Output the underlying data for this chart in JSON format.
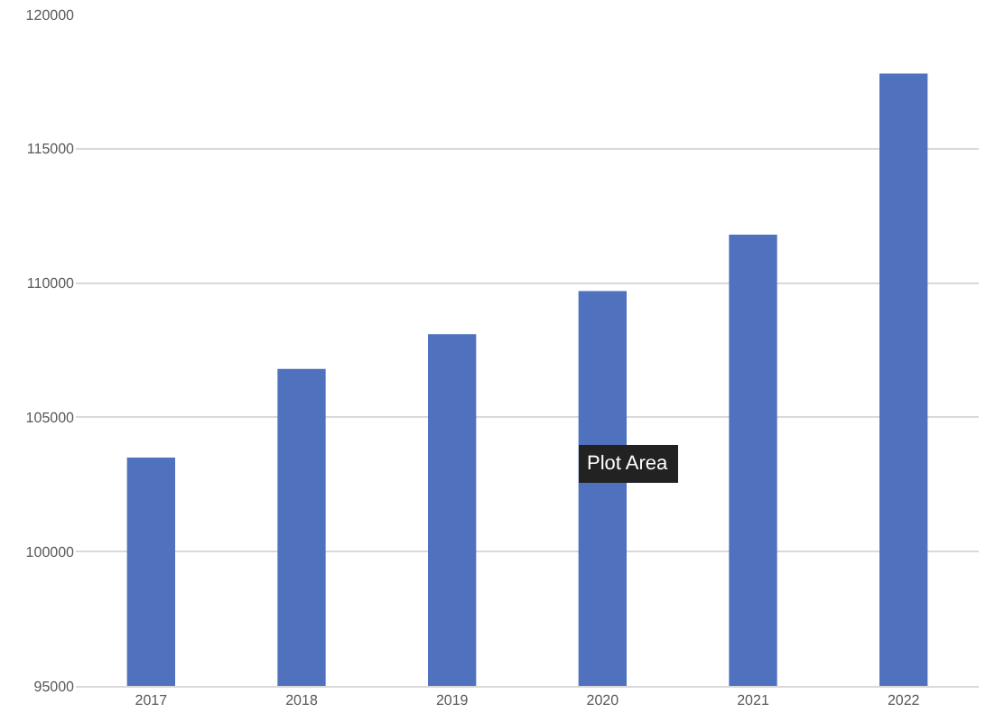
{
  "chart_data": {
    "type": "bar",
    "categories": [
      "2017",
      "2018",
      "2019",
      "2020",
      "2021",
      "2022"
    ],
    "values": [
      103500,
      106800,
      108100,
      109700,
      111800,
      117800
    ],
    "color": "#4f71be",
    "ylim": [
      95000,
      120000
    ],
    "yticks": [
      95000,
      100000,
      105000,
      110000,
      115000,
      120000
    ],
    "grid": "y",
    "annotations": [
      "Plot Area"
    ]
  }
}
